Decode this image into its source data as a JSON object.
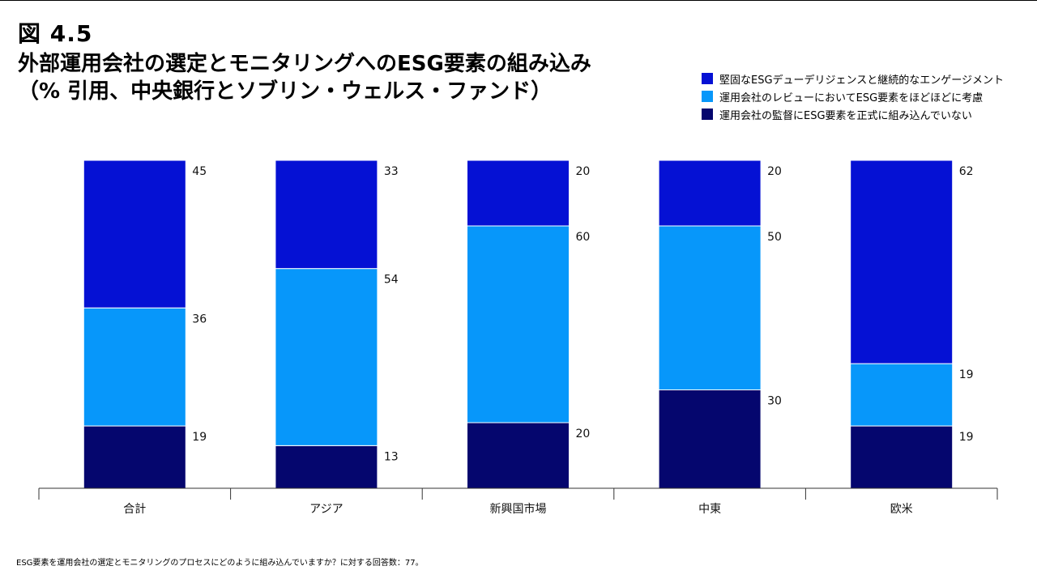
{
  "figure_label": "図 4.5",
  "title_line1": "外部運用会社の選定とモニタリングへのESG要素の組み込み",
  "title_line2": "（% 引用、中央銀行とソブリン・ウェルス・ファンド）",
  "footnote": "ESG要素を運用会社の選定とモニタリングのプロセスにどのように組み込んでいますか？に対する回答数：77。",
  "chart_data": {
    "type": "bar",
    "stacked": true,
    "categories": [
      "合計",
      "アジア",
      "新興国市場",
      "中東",
      "欧米"
    ],
    "series": [
      {
        "name": "運用会社の監督にESG要素を正式に組み込んでいない",
        "color": "#05066e",
        "values": [
          19,
          13,
          20,
          30,
          19
        ]
      },
      {
        "name": "運用会社のレビューにおいてESG要素をほどほどに考慮",
        "color": "#0797fa",
        "values": [
          36,
          54,
          60,
          50,
          19
        ]
      },
      {
        "name": "堅固なESGデューデリジェンスと継続的なエンゲージメント",
        "color": "#0511d4",
        "values": [
          45,
          33,
          20,
          20,
          62
        ]
      }
    ],
    "legend_order": [
      2,
      1,
      0
    ],
    "legend_position": "top-right",
    "ylim": [
      0,
      100
    ],
    "grid": false,
    "xlabel": "",
    "ylabel": ""
  }
}
